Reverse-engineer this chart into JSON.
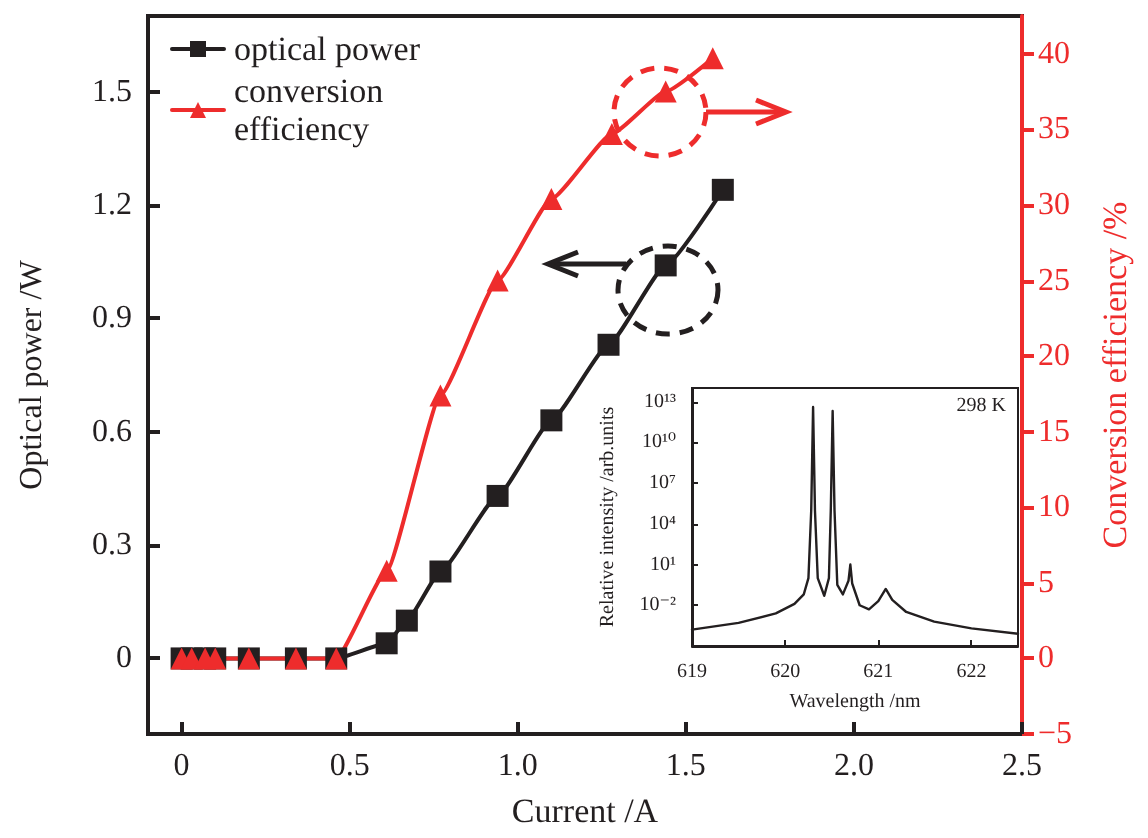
{
  "chart_data": [
    {
      "type": "line",
      "xlabel": "Current /A",
      "ylabel": "Optical power /W",
      "y2label": "Conversion efficiency /%",
      "series": [
        {
          "name": "optical power",
          "color": "#231f20",
          "marker": "square",
          "x": [
            0,
            0.03,
            0.07,
            0.1,
            0.2,
            0.34,
            0.46,
            0.61,
            0.67,
            0.77,
            0.94,
            1.1,
            1.27,
            1.44,
            1.61
          ],
          "values": [
            0,
            0,
            0,
            0,
            0,
            0,
            0,
            0.04,
            0.1,
            0.23,
            0.43,
            0.63,
            0.83,
            1.04,
            1.24
          ]
        },
        {
          "name": "conversion efficiency",
          "color": "#ee2c2c",
          "marker": "triangle",
          "axis": "y2",
          "x": [
            0,
            0.03,
            0.07,
            0.1,
            0.2,
            0.34,
            0.46,
            0.61,
            0.77,
            0.94,
            1.1,
            1.28,
            1.44,
            1.58
          ],
          "values": [
            0,
            0,
            0,
            0,
            0,
            0,
            0,
            5.8,
            17.4,
            25.0,
            30.4,
            34.7,
            37.5,
            39.7
          ]
        }
      ],
      "xlim": [
        -0.1,
        2.5
      ],
      "xticks": [
        0,
        0.5,
        {
          "value": 1,
          "label": "1.0"
        },
        1.5,
        {
          "value": 2,
          "label": "2.0"
        },
        2.5
      ],
      "ylim": [
        -0.2,
        1.7
      ],
      "yticks": [
        0,
        0.3,
        0.6,
        0.9,
        1.2,
        1.5
      ],
      "y2lim": [
        -5,
        42.5
      ],
      "y2ticks": [
        {
          "value": -5,
          "label": "−5"
        },
        0,
        5,
        10,
        15,
        20,
        25,
        30,
        35,
        40
      ],
      "legend": "top left",
      "line_style": "solid",
      "grid": false
    },
    {
      "type": "line",
      "xlabel": "Wavelength /nm",
      "ylabel": "Relative intensity /arb.units",
      "annotations": [
        "298 K"
      ],
      "log": "y",
      "line_style": "solid",
      "marker": "none",
      "series": [
        {
          "color": "#231f20",
          "x": [
            619.0,
            619.5,
            619.9,
            620.1,
            620.2,
            620.25,
            620.28,
            620.3,
            620.32,
            620.35,
            620.42,
            620.47,
            620.49,
            620.51,
            620.53,
            620.56,
            620.62,
            620.68,
            620.7,
            620.72,
            620.8,
            620.9,
            621.0,
            621.08,
            621.15,
            621.3,
            621.6,
            622.0,
            622.5
          ],
          "values": [
            0.00016,
            0.0005,
            0.0025,
            0.0126,
            0.063,
            1,
            100000.0,
            4000000000000.0,
            100000.0,
            1,
            0.05,
            1,
            100000.0,
            2000000000000.0,
            100000.0,
            0.32,
            0.063,
            0.63,
            10,
            0.4,
            0.01,
            0.005,
            0.02,
            0.16,
            0.025,
            0.0032,
            0.00063,
            0.0002,
            8e-05
          ]
        }
      ],
      "xlim": [
        619,
        622.5
      ],
      "xticks": [
        619,
        620,
        621,
        622
      ],
      "ylim": [
        1e-05,
        100000000000000.0
      ],
      "yticks": [
        {
          "value": 0.01,
          "label": "10⁻²"
        },
        {
          "value": 10,
          "label": "10¹"
        },
        {
          "value": 10000.0,
          "label": "10⁴"
        },
        {
          "value": 10000000.0,
          "label": "10⁷"
        },
        {
          "value": 10000000000.0,
          "label": "10¹⁰"
        },
        {
          "value": 10000000000000.0,
          "label": "10¹³"
        }
      ]
    }
  ]
}
